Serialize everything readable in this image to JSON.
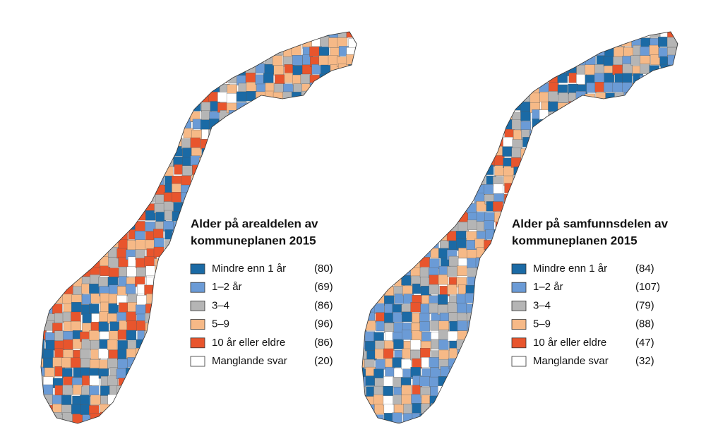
{
  "maps": [
    {
      "title_lines": [
        "Alder på arealdelen av",
        "kommuneplanen 2015"
      ],
      "legend": [
        {
          "label": "Mindre enn 1 år",
          "count": "(80)"
        },
        {
          "label": "1–2 år",
          "count": "(69)"
        },
        {
          "label": "3–4",
          "count": "(86)"
        },
        {
          "label": "5–9",
          "count": "(96)"
        },
        {
          "label": "10 år eller eldre",
          "count": "(86)"
        },
        {
          "label": "Manglande svar",
          "count": "(20)"
        }
      ]
    },
    {
      "title_lines": [
        "Alder på samfunnsdelen av",
        "kommuneplanen 2015"
      ],
      "legend": [
        {
          "label": "Mindre enn 1 år",
          "count": "(84)"
        },
        {
          "label": "1–2 år",
          "count": "(107)"
        },
        {
          "label": "3–4",
          "count": "(79)"
        },
        {
          "label": "5–9",
          "count": "(88)"
        },
        {
          "label": "10 år eller eldre",
          "count": "(47)"
        },
        {
          "label": "Manglande svar",
          "count": "(32)"
        }
      ]
    }
  ]
}
